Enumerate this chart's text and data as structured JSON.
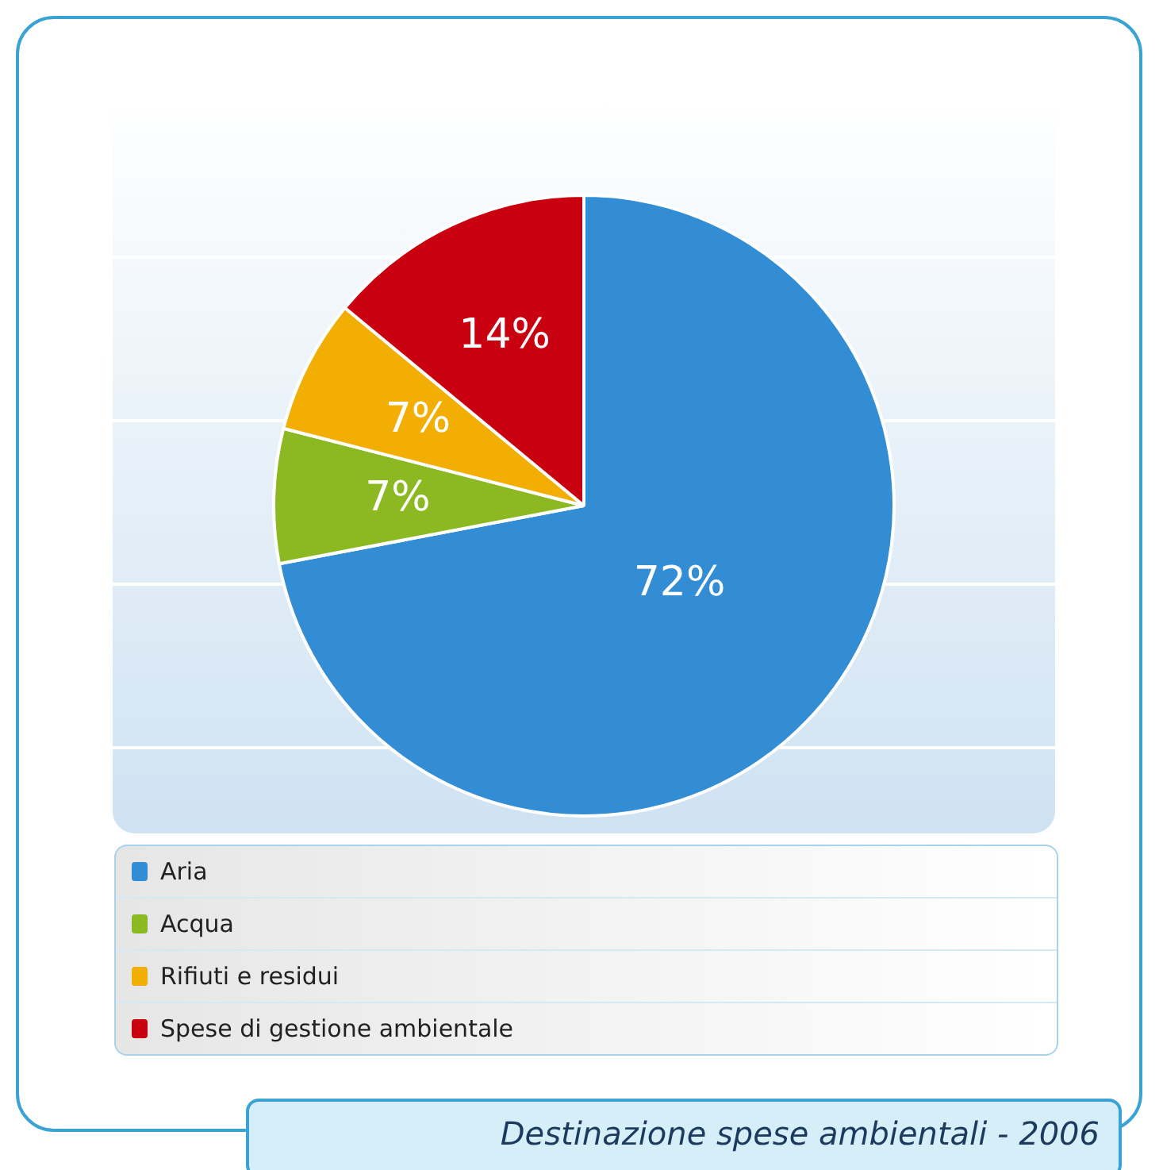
{
  "chart_data": {
    "type": "pie",
    "title": "Destinazione spese ambientali - 2006",
    "categories": [
      "Aria",
      "Acqua",
      "Rifiuti e residui",
      "Spese di gestione ambientale"
    ],
    "values": [
      72,
      7,
      7,
      14
    ],
    "colors": [
      "#328dd4",
      "#8cb921",
      "#f3ae04",
      "#c8000f"
    ],
    "value_labels": [
      "72%",
      "7%",
      "7%",
      "14%"
    ],
    "legend": "bottom"
  }
}
